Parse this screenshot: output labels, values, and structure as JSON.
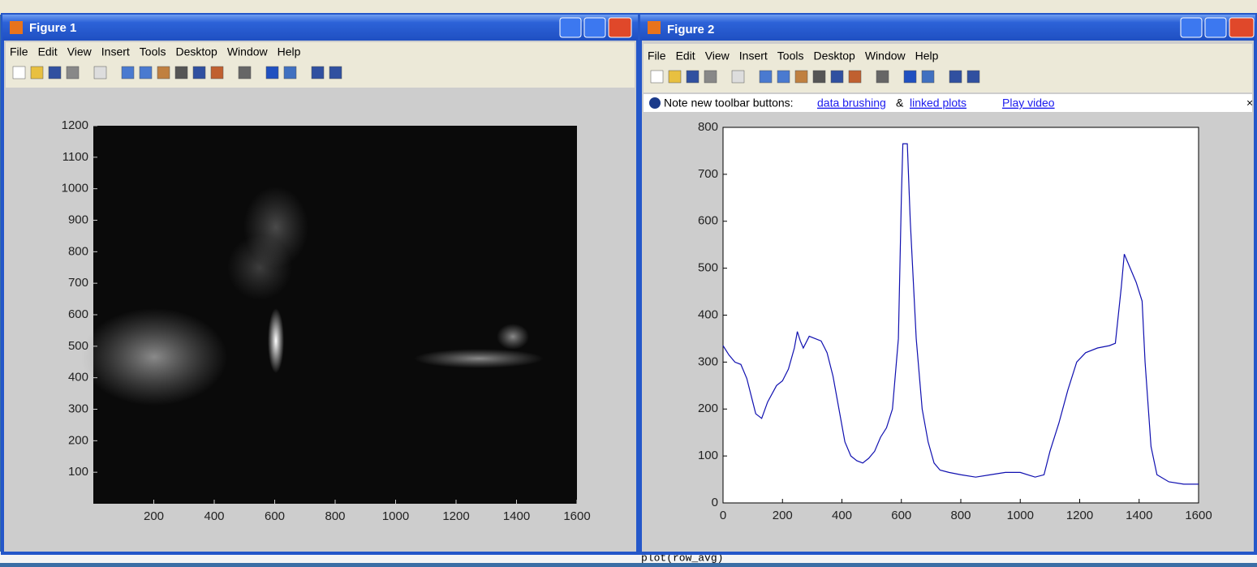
{
  "windows": [
    {
      "title": "Figure 1",
      "menu": [
        "File",
        "Edit",
        "View",
        "Insert",
        "Tools",
        "Desktop",
        "Window",
        "Help"
      ]
    },
    {
      "title": "Figure 2",
      "menu": [
        "File",
        "Edit",
        "View",
        "Insert",
        "Tools",
        "Desktop",
        "Window",
        "Help"
      ],
      "note": {
        "text": "Note new toolbar buttons:",
        "link1": "data brushing",
        "amp": "&",
        "link2": "linked plots",
        "video": "Play video",
        "close": "×"
      }
    }
  ],
  "command": "plot(row_avg)",
  "chart_data": [
    {
      "type": "image",
      "xlim": [
        0,
        1600
      ],
      "ylim": [
        0,
        1200
      ],
      "xticks": [
        200,
        400,
        600,
        800,
        1000,
        1200,
        1400,
        1600
      ],
      "yticks": [
        100,
        200,
        300,
        400,
        500,
        600,
        700,
        800,
        900,
        1000,
        1100,
        1200
      ]
    },
    {
      "type": "line",
      "color": "#1010b0",
      "xlim": [
        0,
        1600
      ],
      "ylim": [
        0,
        800
      ],
      "xticks": [
        0,
        200,
        400,
        600,
        800,
        1000,
        1200,
        1400,
        1600
      ],
      "yticks": [
        0,
        100,
        200,
        300,
        400,
        500,
        600,
        700,
        800
      ],
      "x": [
        0,
        20,
        40,
        60,
        80,
        100,
        110,
        120,
        130,
        150,
        180,
        200,
        220,
        240,
        250,
        260,
        270,
        290,
        310,
        330,
        350,
        370,
        390,
        410,
        430,
        450,
        470,
        490,
        510,
        530,
        550,
        570,
        590,
        600,
        605,
        620,
        630,
        650,
        670,
        690,
        710,
        730,
        760,
        800,
        850,
        900,
        950,
        1000,
        1050,
        1080,
        1100,
        1130,
        1160,
        1190,
        1220,
        1260,
        1300,
        1320,
        1340,
        1350,
        1370,
        1390,
        1410,
        1420,
        1440,
        1460,
        1500,
        1550,
        1600
      ],
      "values": [
        335,
        315,
        300,
        295,
        265,
        215,
        190,
        185,
        180,
        215,
        250,
        260,
        285,
        330,
        365,
        345,
        330,
        355,
        350,
        345,
        320,
        270,
        200,
        130,
        100,
        90,
        85,
        95,
        110,
        140,
        160,
        200,
        350,
        650,
        765,
        765,
        600,
        350,
        200,
        130,
        85,
        70,
        65,
        60,
        55,
        60,
        65,
        65,
        55,
        60,
        110,
        170,
        240,
        300,
        320,
        330,
        335,
        340,
        460,
        530,
        500,
        470,
        430,
        300,
        120,
        60,
        45,
        40,
        40
      ]
    }
  ]
}
